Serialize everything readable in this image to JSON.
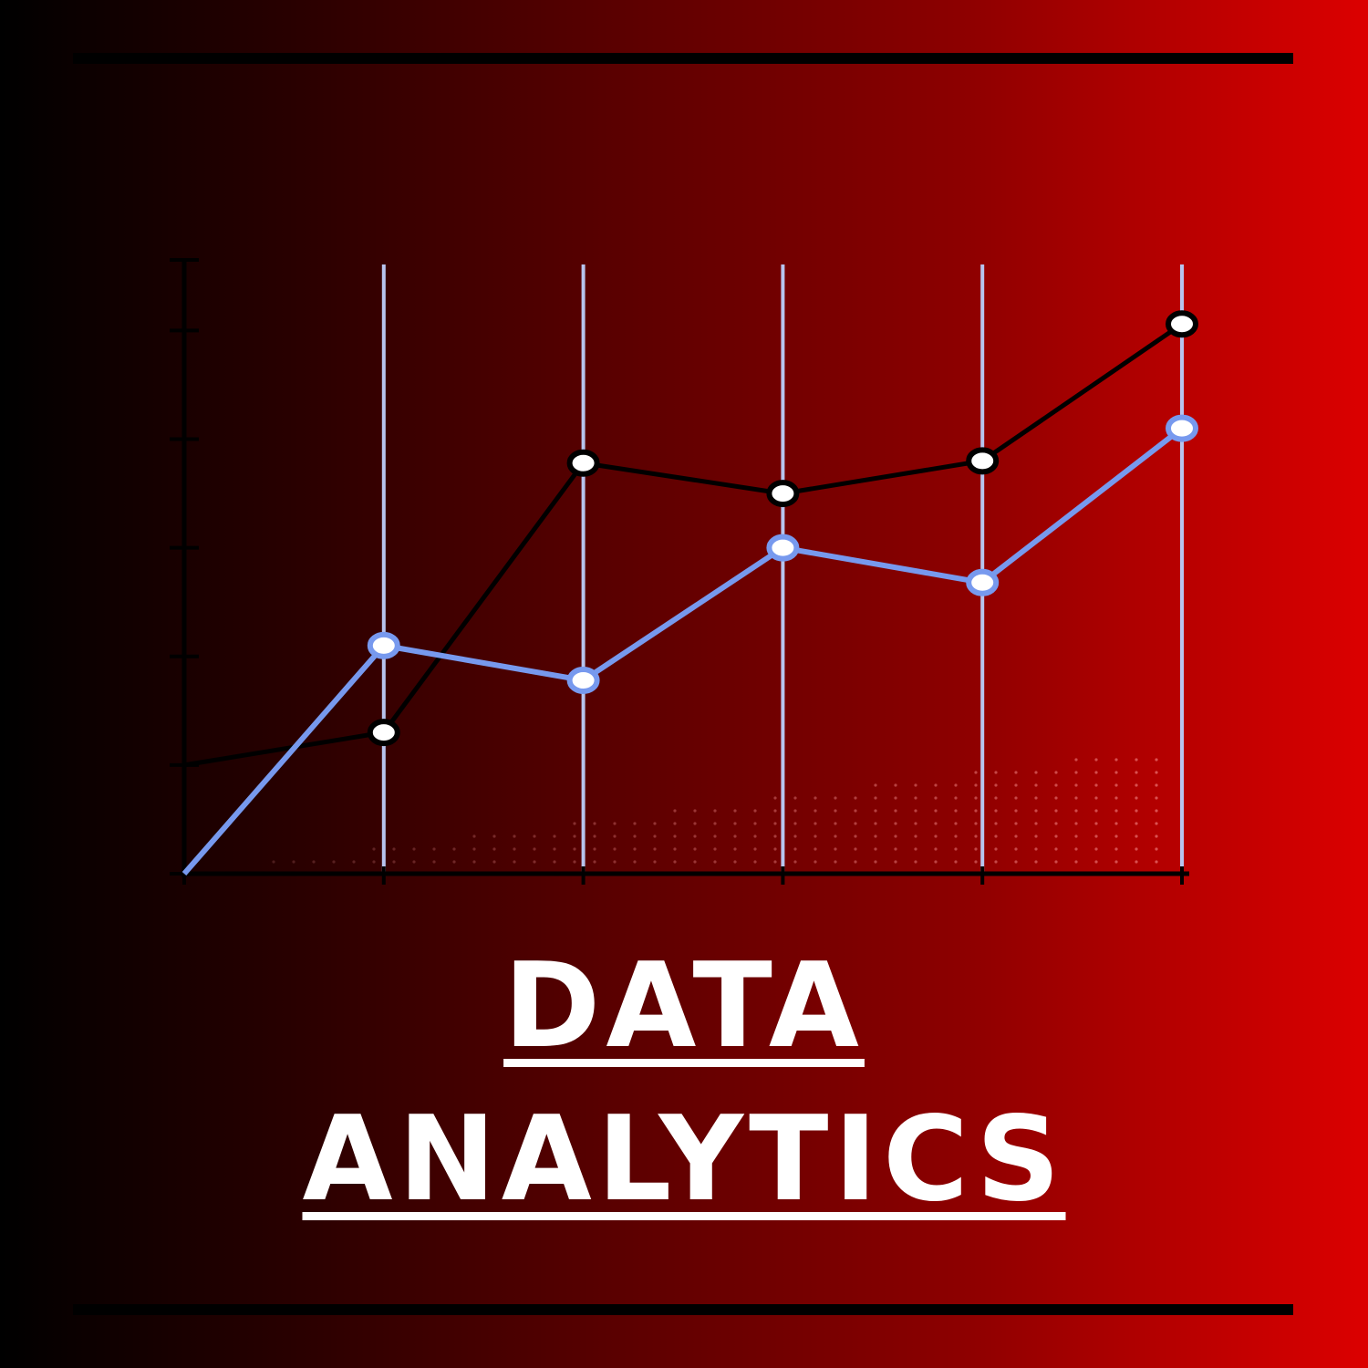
{
  "title": {
    "line1": "DATA",
    "line2": "ANALYTICS",
    "color": "#ffffff"
  },
  "background": {
    "gradient_start": "#000000",
    "gradient_end": "#dc0000"
  },
  "chart_data": {
    "type": "line",
    "x": [
      0,
      1,
      2,
      3,
      4,
      5
    ],
    "xlim": [
      0,
      5
    ],
    "ylim": [
      0,
      5.65
    ],
    "y_ticks": [
      0,
      1,
      2,
      3,
      4,
      5
    ],
    "grid": "vertical",
    "legend": "none",
    "series": [
      {
        "color": "#000000",
        "marker_fill": "#ffffff",
        "values": [
          1.0,
          1.3,
          3.78,
          3.5,
          3.8,
          5.06
        ]
      },
      {
        "color": "#7799ee",
        "marker_fill": "#ffffff",
        "values": [
          0.0,
          2.1,
          1.78,
          3.0,
          2.68,
          4.1
        ]
      }
    ]
  }
}
